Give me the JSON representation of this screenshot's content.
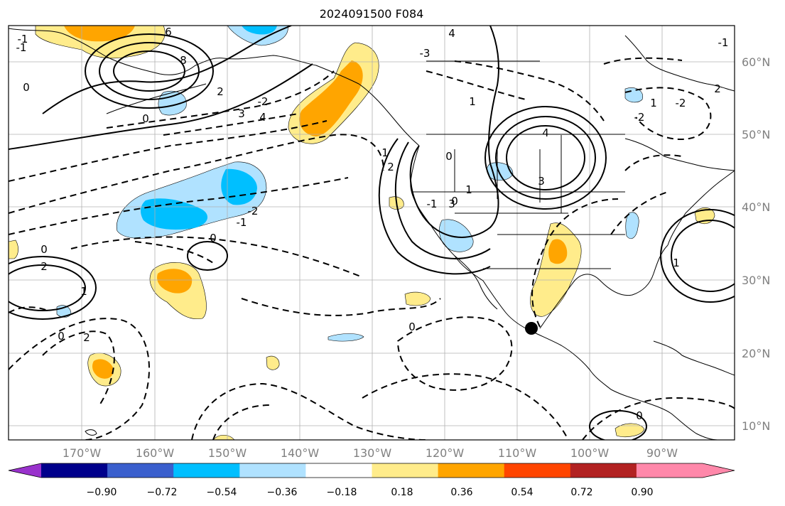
{
  "title": "2024091500 F084",
  "lon_labels": [
    "170°W",
    "160°W",
    "150°W",
    "140°W",
    "130°W",
    "120°W",
    "110°W",
    "100°W",
    "90°W"
  ],
  "lat_labels": [
    "60°N",
    "50°N",
    "40°N",
    "30°N",
    "20°N",
    "10°N"
  ],
  "colorbar": {
    "tick_labels": [
      "−0.90",
      "−0.72",
      "−0.54",
      "−0.36",
      "−0.18",
      "0.18",
      "0.36",
      "0.54",
      "0.72",
      "0.90"
    ],
    "colors": [
      "#9932cc",
      "#00008b",
      "#3a5fcd",
      "#00bfff",
      "#b0e2ff",
      "#ffffff",
      "#ffec8b",
      "#ffa500",
      "#ff4500",
      "#b22222",
      "#ff88aa"
    ]
  },
  "contour_labels": [
    "6",
    "8",
    "4",
    "2",
    "1",
    "0",
    "-1",
    "-2",
    "3",
    "4",
    "-3",
    "3",
    "4",
    "2",
    "1",
    "0",
    "-1",
    "0",
    "-2",
    "2",
    "1",
    "0",
    "-2",
    "1",
    "0",
    "0",
    "1",
    "2",
    "-1",
    "0",
    "3",
    "2",
    "0",
    "-1",
    "-2",
    "0",
    "1",
    "-1"
  ],
  "marker": {
    "label": "",
    "color": "#000000"
  }
}
